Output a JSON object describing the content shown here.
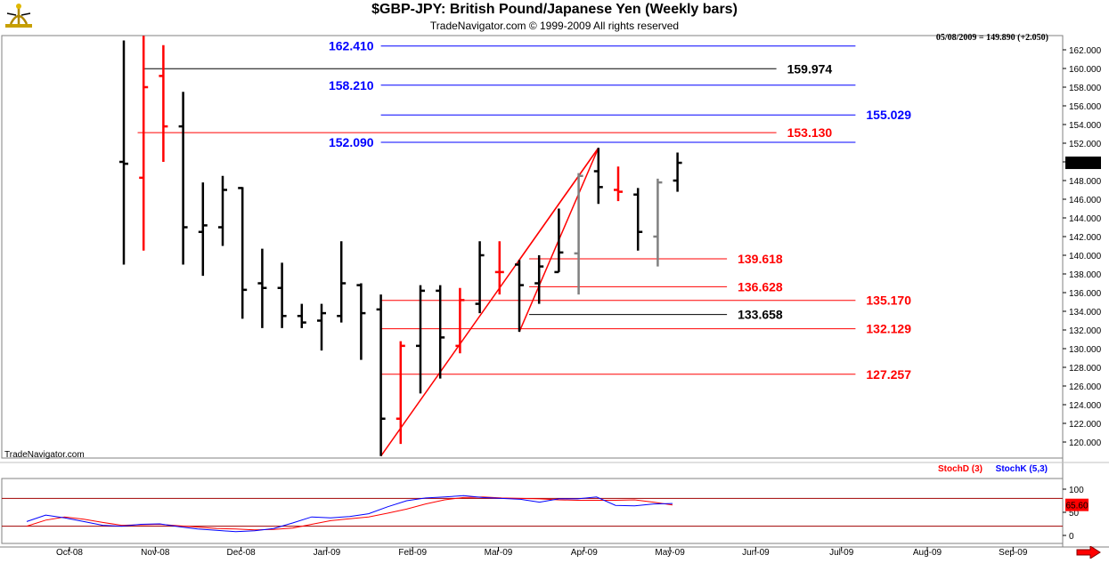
{
  "header": {
    "title": "$GBP-JPY:  British Pound/Japanese Yen  (Weekly bars)",
    "subtitle": "TradeNavigator.com © 1999-2009 All rights reserved",
    "date_readout": "05/08/2009 = 149.890 (+2.050)",
    "watermark": "TradeNavigator.com"
  },
  "chart_data": [
    {
      "type": "ohlc",
      "title": "$GBP-JPY:  British Pound/Japanese Yen  (Weekly bars)",
      "ylim": [
        118,
        164
      ],
      "y_ticks": [
        120,
        122,
        124,
        126,
        128,
        130,
        132,
        134,
        136,
        138,
        140,
        142,
        144,
        146,
        148,
        150,
        152,
        154,
        156,
        158,
        160,
        162
      ],
      "y_tick_labels": [
        "120.000",
        "122.000",
        "124.000",
        "126.000",
        "128.000",
        "130.000",
        "132.000",
        "134.000",
        "136.000",
        "138.000",
        "140.000",
        "142.000",
        "144.000",
        "146.000",
        "148.000",
        "150.000",
        "152.000",
        "154.000",
        "156.000",
        "158.000",
        "160.000",
        "162.000"
      ],
      "x_labels": [
        "Oct-08",
        "Nov-08",
        "Dec-08",
        "Jan-09",
        "Feb-09",
        "Mar-09",
        "Apr-09",
        "May-09",
        "Jun-09",
        "Jul-09",
        "Aug-09",
        "Sep-09"
      ],
      "last_price_label": "149.890",
      "bars": [
        {
          "o": 150.0,
          "h": 163.0,
          "l": 139.0,
          "c": 149.8,
          "color": "#000000"
        },
        {
          "o": 148.3,
          "h": 163.5,
          "l": 140.5,
          "c": 158.0,
          "color": "#ff0000"
        },
        {
          "o": 159.2,
          "h": 162.5,
          "l": 150.0,
          "c": 153.8,
          "color": "#ff0000"
        },
        {
          "o": 153.8,
          "h": 157.5,
          "l": 139.0,
          "c": 143.0,
          "color": "#000000"
        },
        {
          "o": 142.5,
          "h": 147.8,
          "l": 137.8,
          "c": 143.2,
          "color": "#000000"
        },
        {
          "o": 143.0,
          "h": 148.5,
          "l": 141.0,
          "c": 147.0,
          "color": "#000000"
        },
        {
          "o": 147.2,
          "h": 147.3,
          "l": 133.2,
          "c": 136.3,
          "color": "#000000"
        },
        {
          "o": 137.0,
          "h": 140.7,
          "l": 132.2,
          "c": 136.5,
          "color": "#000000"
        },
        {
          "o": 136.5,
          "h": 139.2,
          "l": 132.2,
          "c": 133.5,
          "color": "#000000"
        },
        {
          "o": 133.5,
          "h": 134.8,
          "l": 132.2,
          "c": 132.8,
          "color": "#000000"
        },
        {
          "o": 133.0,
          "h": 134.8,
          "l": 129.8,
          "c": 133.8,
          "color": "#000000"
        },
        {
          "o": 133.5,
          "h": 141.5,
          "l": 132.8,
          "c": 137.0,
          "color": "#000000"
        },
        {
          "o": 136.8,
          "h": 137.0,
          "l": 128.8,
          "c": 133.8,
          "color": "#000000"
        },
        {
          "o": 134.2,
          "h": 135.8,
          "l": 118.5,
          "c": 122.5,
          "color": "#000000"
        },
        {
          "o": 122.5,
          "h": 130.8,
          "l": 119.8,
          "c": 130.3,
          "color": "#ff0000"
        },
        {
          "o": 130.3,
          "h": 136.8,
          "l": 125.2,
          "c": 136.2,
          "color": "#000000"
        },
        {
          "o": 136.2,
          "h": 136.8,
          "l": 126.8,
          "c": 131.2,
          "color": "#000000"
        },
        {
          "o": 130.3,
          "h": 136.5,
          "l": 129.5,
          "c": 135.2,
          "color": "#ff0000"
        },
        {
          "o": 134.8,
          "h": 141.5,
          "l": 133.8,
          "c": 140.0,
          "color": "#000000"
        },
        {
          "o": 138.2,
          "h": 141.5,
          "l": 135.8,
          "c": 138.2,
          "color": "#ff0000"
        },
        {
          "o": 139.0,
          "h": 139.5,
          "l": 131.8,
          "c": 136.8,
          "color": "#000000"
        },
        {
          "o": 137.0,
          "h": 140.0,
          "l": 134.8,
          "c": 138.8,
          "color": "#000000"
        },
        {
          "o": 138.2,
          "h": 145.0,
          "l": 138.2,
          "c": 140.3,
          "color": "#000000"
        },
        {
          "o": 140.2,
          "h": 148.8,
          "l": 135.8,
          "c": 148.5,
          "color": "#808080"
        },
        {
          "o": 149.0,
          "h": 151.5,
          "l": 145.5,
          "c": 147.3,
          "color": "#000000"
        },
        {
          "o": 147.0,
          "h": 149.5,
          "l": 145.8,
          "c": 146.8,
          "color": "#ff0000"
        },
        {
          "o": 146.5,
          "h": 147.2,
          "l": 140.5,
          "c": 142.5,
          "color": "#000000"
        },
        {
          "o": 142.0,
          "h": 148.2,
          "l": 138.8,
          "c": 147.8,
          "color": "#808080"
        },
        {
          "o": 148.0,
          "h": 151.0,
          "l": 146.8,
          "c": 149.9,
          "color": "#000000"
        }
      ],
      "levels": [
        {
          "value": 162.41,
          "label": "162.410",
          "color": "#0000ff",
          "from_week": 13,
          "to_week": 37,
          "label_side": "left"
        },
        {
          "value": 159.974,
          "label": "159.974",
          "color": "#000000",
          "from_week": 1,
          "to_week": 33,
          "label_side": "right"
        },
        {
          "value": 158.21,
          "label": "158.210",
          "color": "#0000ff",
          "from_week": 13,
          "to_week": 37,
          "label_side": "left"
        },
        {
          "value": 155.029,
          "label": "155.029",
          "color": "#0000ff",
          "from_week": 13,
          "to_week": 37,
          "label_side": "right"
        },
        {
          "value": 153.13,
          "label": "153.130",
          "color": "#ff0000",
          "from_week": 0.7,
          "to_week": 33,
          "label_side": "right"
        },
        {
          "value": 152.09,
          "label": "152.090",
          "color": "#0000ff",
          "from_week": 13,
          "to_week": 37,
          "label_side": "left"
        },
        {
          "value": 139.618,
          "label": "139.618",
          "color": "#ff0000",
          "from_week": 20.5,
          "to_week": 30.5,
          "label_side": "right"
        },
        {
          "value": 136.628,
          "label": "136.628",
          "color": "#ff0000",
          "from_week": 20.5,
          "to_week": 30.5,
          "label_side": "right"
        },
        {
          "value": 135.17,
          "label": "135.170",
          "color": "#ff0000",
          "from_week": 13,
          "to_week": 37,
          "label_side": "right"
        },
        {
          "value": 133.658,
          "label": "133.658",
          "color": "#000000",
          "from_week": 20.5,
          "to_week": 30.5,
          "label_side": "right"
        },
        {
          "value": 132.129,
          "label": "132.129",
          "color": "#ff0000",
          "from_week": 13,
          "to_week": 37,
          "label_side": "right"
        },
        {
          "value": 127.257,
          "label": "127.257",
          "color": "#ff0000",
          "from_week": 13,
          "to_week": 37,
          "label_side": "right"
        }
      ],
      "pattern_lines": [
        {
          "points": [
            [
              13,
              118.5
            ],
            [
              24,
              151.5
            ]
          ],
          "color": "#ff0000"
        },
        {
          "points": [
            [
              20,
              139.5
            ],
            [
              24,
              151.5
            ]
          ],
          "color": "#ff0000"
        },
        {
          "points": [
            [
              20,
              131.8
            ],
            [
              24,
              151.5
            ]
          ],
          "color": "#ff0000"
        }
      ]
    },
    {
      "type": "line",
      "title": "StochD (3)  StochK (5,3)",
      "ylim": [
        -10,
        100
      ],
      "y_ticks": [
        0,
        50,
        100
      ],
      "reference_lines": [
        20,
        80
      ],
      "value_label": "65.60",
      "series": [
        {
          "name": "StochD (3)",
          "color": "#ff0000",
          "values": [
            20,
            33,
            40,
            35,
            28,
            22,
            23,
            24,
            21,
            18,
            15,
            14,
            12,
            13,
            16,
            24,
            32,
            36,
            40,
            48,
            57,
            68,
            77,
            82,
            83,
            81,
            80,
            79,
            77,
            76,
            76,
            76,
            77,
            72,
            66
          ]
        },
        {
          "name": "StochK (5,3)",
          "color": "#0000ff",
          "values": [
            30,
            44,
            38,
            30,
            22,
            20,
            24,
            25,
            19,
            14,
            11,
            8,
            10,
            15,
            27,
            40,
            38,
            41,
            47,
            62,
            75,
            81,
            83,
            86,
            82,
            80,
            78,
            72,
            79,
            79,
            83,
            65,
            64,
            68,
            69
          ]
        }
      ]
    }
  ]
}
